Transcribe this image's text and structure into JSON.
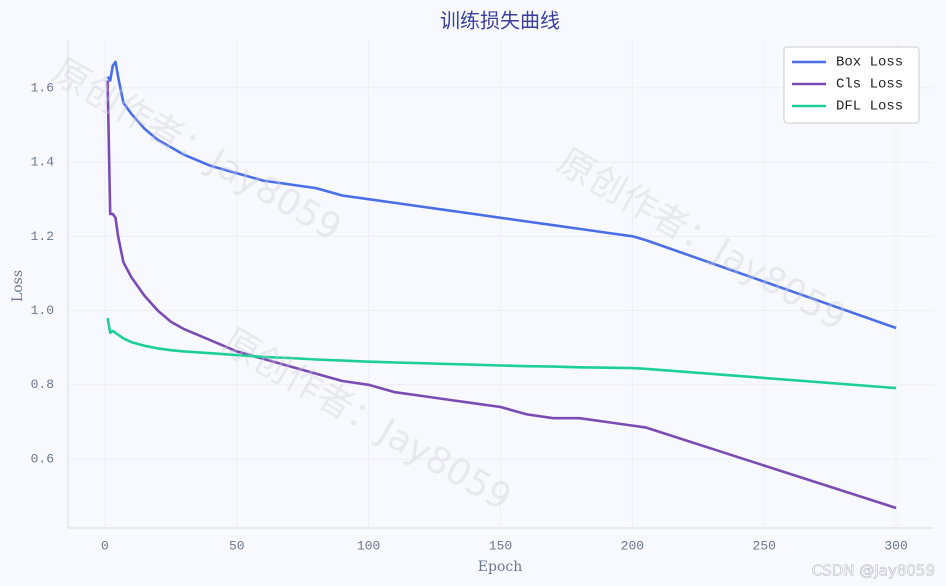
{
  "chart_data": {
    "type": "line",
    "title": "训练损失曲线",
    "x_label": "Epoch",
    "y_label": "Loss",
    "x": [
      1,
      2,
      3,
      4,
      5,
      7,
      10,
      15,
      20,
      25,
      30,
      40,
      50,
      60,
      70,
      80,
      90,
      100,
      110,
      120,
      130,
      140,
      150,
      160,
      170,
      180,
      190,
      200,
      205,
      300
    ],
    "series": [
      {
        "name": "Box Loss",
        "color": "#4a6ee8",
        "values": [
          1.63,
          1.62,
          1.66,
          1.67,
          1.63,
          1.56,
          1.53,
          1.49,
          1.46,
          1.44,
          1.42,
          1.39,
          1.37,
          1.35,
          1.34,
          1.33,
          1.31,
          1.3,
          1.29,
          1.28,
          1.27,
          1.26,
          1.25,
          1.24,
          1.23,
          1.22,
          1.21,
          1.2,
          1.19,
          0.953
        ]
      },
      {
        "name": "Cls Loss",
        "color": "#7a4cb3",
        "values": [
          1.62,
          1.26,
          1.26,
          1.25,
          1.2,
          1.13,
          1.09,
          1.04,
          1.0,
          0.97,
          0.95,
          0.92,
          0.89,
          0.87,
          0.85,
          0.83,
          0.81,
          0.8,
          0.78,
          0.77,
          0.76,
          0.75,
          0.74,
          0.72,
          0.71,
          0.71,
          0.7,
          0.69,
          0.685,
          0.468
        ]
      },
      {
        "name": "DFL Loss",
        "color": "#1ccf98",
        "values": [
          0.98,
          0.94,
          0.945,
          0.94,
          0.935,
          0.925,
          0.915,
          0.905,
          0.898,
          0.893,
          0.89,
          0.885,
          0.88,
          0.875,
          0.872,
          0.868,
          0.865,
          0.862,
          0.86,
          0.858,
          0.856,
          0.854,
          0.852,
          0.85,
          0.849,
          0.847,
          0.846,
          0.845,
          0.843,
          0.791
        ]
      }
    ],
    "xlim": [
      -14,
      314
    ],
    "ylim": [
      0.414,
      1.729
    ],
    "xticks": [
      0,
      50,
      100,
      150,
      200,
      250,
      300
    ],
    "yticks": [
      0.6,
      0.8,
      {
        "value": 1,
        "label": "1.0"
      },
      1.2,
      1.4,
      1.6
    ],
    "grid": true,
    "legend": "upper-right"
  },
  "watermark": "原创作者：Jay8059",
  "credit": "CSDN @Jay8059"
}
